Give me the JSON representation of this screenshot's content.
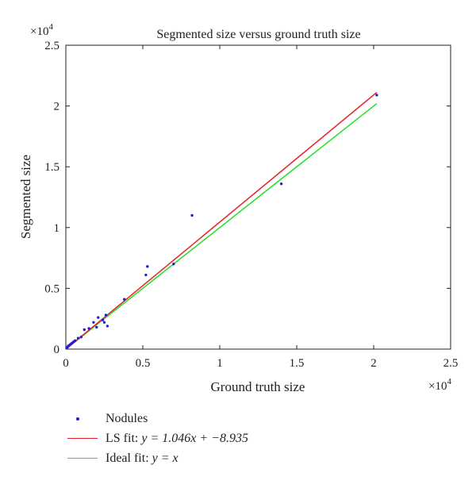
{
  "chart_data": {
    "type": "scatter",
    "title": "Segmented size versus ground truth size",
    "xlabel": "Ground truth size",
    "ylabel": "Segmented size",
    "x_multiplier": "×10",
    "x_multiplier_exp": "4",
    "y_multiplier": "×10",
    "y_multiplier_exp": "4",
    "xlim": [
      0,
      25000
    ],
    "ylim": [
      0,
      25000
    ],
    "xticks": [
      0,
      5000,
      10000,
      15000,
      20000,
      25000
    ],
    "yticks": [
      0,
      5000,
      10000,
      15000,
      20000,
      25000
    ],
    "xtick_labels": [
      "0",
      "0.5",
      "1",
      "1.5",
      "2",
      "2.5"
    ],
    "ytick_labels": [
      "0",
      "0.5",
      "1",
      "1.5",
      "2",
      "2.5"
    ],
    "grid": false,
    "legend_position": "below",
    "series": [
      {
        "name": "Nodules",
        "kind": "points",
        "color": "#1f1fd6",
        "x": [
          50,
          100,
          150,
          200,
          300,
          400,
          500,
          600,
          800,
          1000,
          1200,
          1500,
          1800,
          2000,
          2100,
          2400,
          2500,
          2600,
          2700,
          3800,
          5200,
          5300,
          7000,
          8200,
          14000,
          20200
        ],
        "y": [
          100,
          150,
          250,
          300,
          400,
          500,
          600,
          700,
          900,
          1000,
          1600,
          1700,
          2200,
          1800,
          2600,
          2400,
          2200,
          2800,
          1900,
          4100,
          6100,
          6800,
          7000,
          11000,
          13600,
          20900
        ]
      },
      {
        "name": "LS fit",
        "label_prefix": "LS fit:",
        "equation": "y = 1.046x + −8.935",
        "kind": "line",
        "color": "#e8202a",
        "slope": 1.046,
        "intercept": -8.935,
        "x_range": [
          0,
          20200
        ]
      },
      {
        "name": "Ideal fit",
        "label_prefix": "Ideal fit:",
        "equation": "y = x",
        "kind": "line",
        "color": "#22e022",
        "slope": 1,
        "intercept": 0,
        "x_range": [
          0,
          20200
        ]
      }
    ]
  }
}
